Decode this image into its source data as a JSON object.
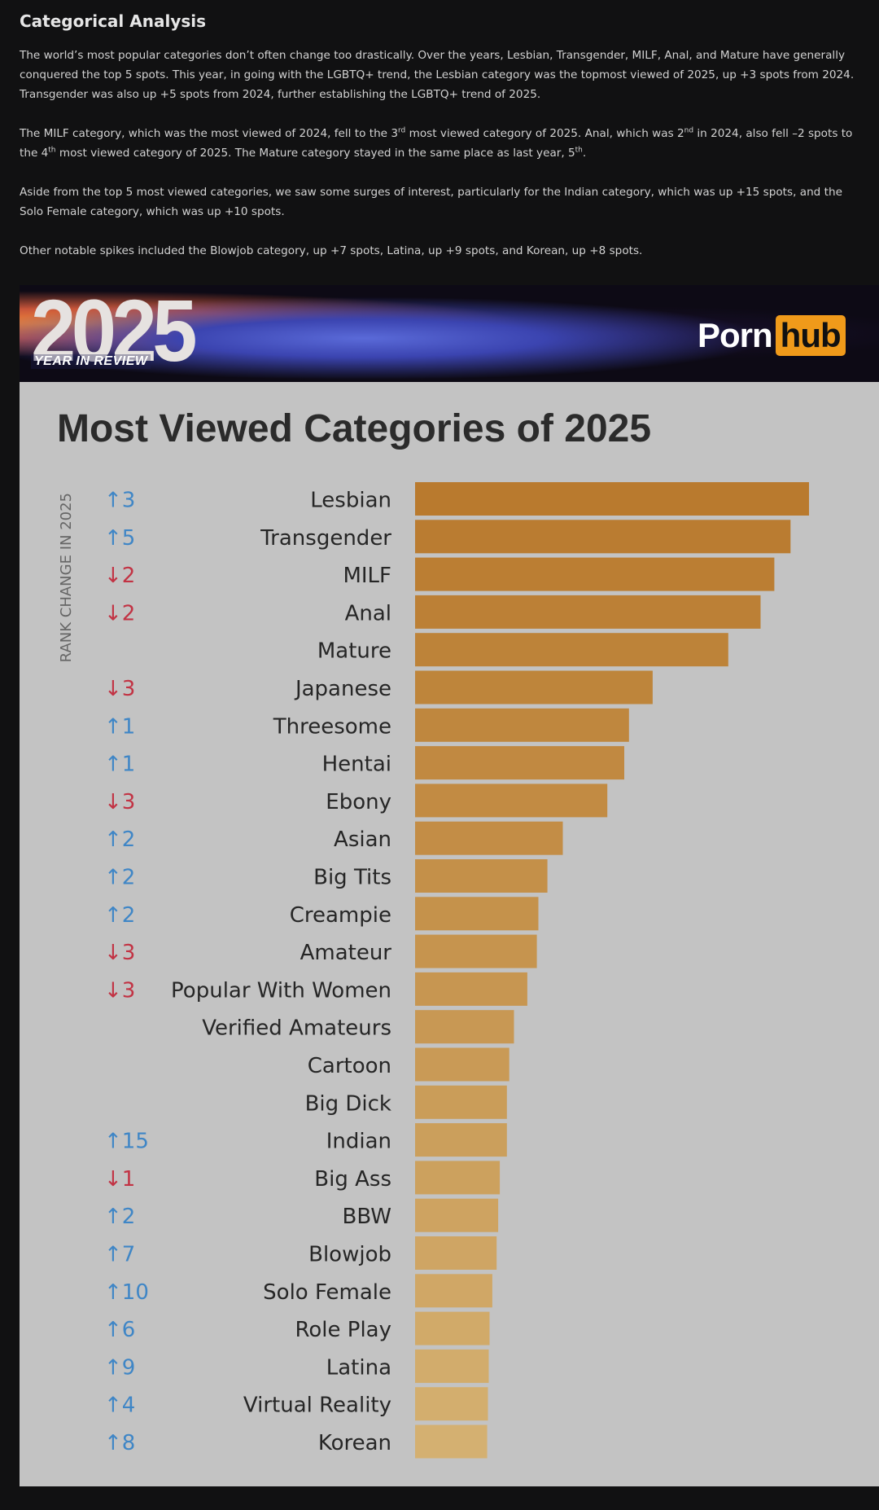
{
  "article": {
    "heading": "Categorical Analysis",
    "p1": "The world’s most popular categories don’t often change too drastically. Over the years, Lesbian, Transgender, MILF, Anal, and Mature have generally conquered the top 5 spots. This year, in going with the LGBTQ+ trend, the Lesbian category was the topmost viewed of 2025, up +3 spots from 2024. Transgender was also up +5 spots from 2024, further establishing the LGBTQ+ trend of 2025.",
    "p2_a": "The MILF category, which was the most viewed of 2024, fell to the 3",
    "p2_sup1": "rd",
    "p2_b": " most viewed category of 2025. Anal, which was 2",
    "p2_sup2": "nd",
    "p2_c": " in 2024, also fell –2 spots to the 4",
    "p2_sup3": "th",
    "p2_d": " most viewed category of 2025. The Mature category stayed in the same place as last year, 5",
    "p2_sup4": "th",
    "p2_e": ".",
    "p3": "Aside from the top 5 most viewed categories, we saw some surges of interest, particularly for the Indian category, which was up +15 spots, and the Solo Female category, which was up +10 spots.",
    "p4": "Other notable spikes included the Blowjob category, up +7 spots, Latina, up +9 spots, and Korean, up +8 spots."
  },
  "banner": {
    "year": "2025",
    "subtitle": "YEAR IN REVIEW",
    "logo_left": "Porn",
    "logo_right": "hub"
  },
  "colors": {
    "up": "#3f86c6",
    "down": "#c23344",
    "bar_top": "#b97a2e",
    "bar_bottom": "#d4b071",
    "panel_bg": "#c3c3c3"
  },
  "chart_data": {
    "type": "bar",
    "orientation": "horizontal",
    "title": "Most Viewed Categories of 2025",
    "side_label": "RANK CHANGE IN 2025",
    "categories": [
      "Lesbian",
      "Transgender",
      "MILF",
      "Anal",
      "Mature",
      "Japanese",
      "Threesome",
      "Hentai",
      "Ebony",
      "Asian",
      "Big Tits",
      "Creampie",
      "Amateur",
      "Popular With Women",
      "Verified Amateurs",
      "Cartoon",
      "Big Dick",
      "Indian",
      "Big Ass",
      "BBW",
      "Blowjob",
      "Solo Female",
      "Role Play",
      "Latina",
      "Virtual Reality",
      "Korean"
    ],
    "values": [
      100,
      95.3,
      91.2,
      87.7,
      79.5,
      60.3,
      54.3,
      53.1,
      48.8,
      37.5,
      33.6,
      31.3,
      30.9,
      28.5,
      25.1,
      23.9,
      23.3,
      23.3,
      21.5,
      21.1,
      20.7,
      19.6,
      18.9,
      18.7,
      18.5,
      18.3
    ],
    "rank_change": [
      "↑3",
      "↑5",
      "↓2",
      "↓2",
      "",
      "↓3",
      "↑1",
      "↑1",
      "↓3",
      "↑2",
      "↑2",
      "↑2",
      "↓3",
      "↓3",
      "",
      "",
      "",
      "↑15",
      "↓1",
      "↑2",
      "↑7",
      "↑10",
      "↑6",
      "↑9",
      "↑4",
      "↑8"
    ],
    "xlim": [
      0,
      100
    ],
    "grid": false,
    "legend": "none"
  }
}
